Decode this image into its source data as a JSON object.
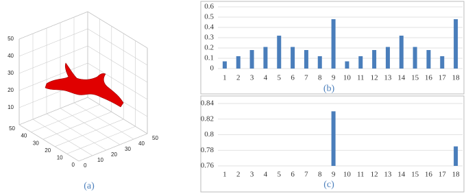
{
  "chart_data": [
    {
      "type": "surface3d",
      "caption": "(a)",
      "color": "#e00000",
      "xlim": [
        0,
        50
      ],
      "ylim": [
        0,
        50
      ],
      "zlim": [
        0,
        50
      ],
      "xticks": [
        0,
        10,
        20,
        30,
        40,
        50
      ],
      "yticks": [
        0,
        10,
        20,
        30,
        40,
        50
      ],
      "zticks": [
        10,
        20,
        30,
        40,
        50
      ],
      "grid": true
    },
    {
      "type": "bar",
      "caption": "(b)",
      "color": "#4a7ebb",
      "categories": [
        "1",
        "2",
        "3",
        "4",
        "5",
        "6",
        "7",
        "8",
        "9",
        "10",
        "11",
        "12",
        "13",
        "14",
        "15",
        "16",
        "17",
        "18"
      ],
      "values": [
        0.07,
        0.12,
        0.18,
        0.21,
        0.32,
        0.21,
        0.18,
        0.12,
        0.48,
        0.07,
        0.12,
        0.18,
        0.21,
        0.32,
        0.21,
        0.18,
        0.12,
        0.48
      ],
      "ylim": [
        0,
        0.6
      ],
      "yticks": [
        0,
        0.1,
        0.2,
        0.3,
        0.4,
        0.5,
        0.6
      ],
      "grid": true
    },
    {
      "type": "bar",
      "caption": "(c)",
      "color": "#4a7ebb",
      "categories": [
        "1",
        "2",
        "3",
        "4",
        "5",
        "6",
        "7",
        "8",
        "9",
        "10",
        "11",
        "12",
        "13",
        "14",
        "15",
        "16",
        "17",
        "18"
      ],
      "values": [
        null,
        null,
        null,
        null,
        null,
        null,
        null,
        null,
        0.83,
        null,
        null,
        null,
        null,
        null,
        null,
        null,
        null,
        0.785
      ],
      "ylim": [
        0.76,
        0.84
      ],
      "yticks": [
        0.76,
        0.78,
        0.8,
        0.82,
        0.84
      ],
      "grid": true
    }
  ]
}
